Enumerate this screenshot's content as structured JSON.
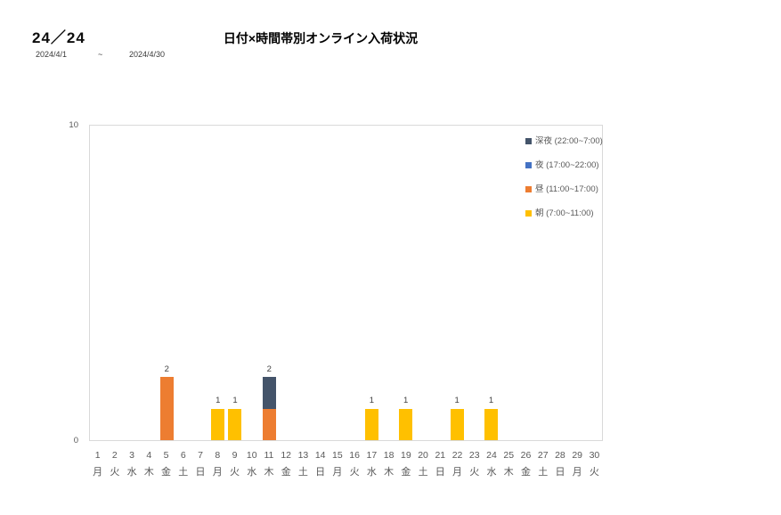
{
  "header": {
    "counter": "24／24",
    "date_from": "2024/4/1",
    "date_separator": "~",
    "date_to": "2024/4/30"
  },
  "chart_data": {
    "type": "bar",
    "stacked": true,
    "title": "日付×時間帯別オンライン入荷状況",
    "xlabel": "",
    "ylabel": "",
    "ylim": [
      0,
      10
    ],
    "y_ticks": [
      0,
      10
    ],
    "grid": false,
    "legend_position": "top-right",
    "categories": [
      1,
      2,
      3,
      4,
      5,
      6,
      7,
      8,
      9,
      10,
      11,
      12,
      13,
      14,
      15,
      16,
      17,
      18,
      19,
      20,
      21,
      22,
      23,
      24,
      25,
      26,
      27,
      28,
      29,
      30
    ],
    "category_weekdays": [
      "月",
      "火",
      "水",
      "木",
      "金",
      "土",
      "日",
      "月",
      "火",
      "水",
      "木",
      "金",
      "土",
      "日",
      "月",
      "火",
      "水",
      "木",
      "金",
      "土",
      "日",
      "月",
      "火",
      "水",
      "木",
      "金",
      "土",
      "日",
      "月",
      "火"
    ],
    "series": [
      {
        "name": "深夜 (22:00~7:00)",
        "color": "#44546A",
        "values": [
          0,
          0,
          0,
          0,
          0,
          0,
          0,
          0,
          0,
          0,
          1,
          0,
          0,
          0,
          0,
          0,
          0,
          0,
          0,
          0,
          0,
          0,
          0,
          0,
          0,
          0,
          0,
          0,
          0,
          0
        ]
      },
      {
        "name": "夜 (17:00~22:00)",
        "color": "#4472C4",
        "values": [
          0,
          0,
          0,
          0,
          0,
          0,
          0,
          0,
          0,
          0,
          0,
          0,
          0,
          0,
          0,
          0,
          0,
          0,
          0,
          0,
          0,
          0,
          0,
          0,
          0,
          0,
          0,
          0,
          0,
          0
        ]
      },
      {
        "name": "昼 (11:00~17:00)",
        "color": "#ED7D31",
        "values": [
          0,
          0,
          0,
          0,
          2,
          0,
          0,
          0,
          0,
          0,
          1,
          0,
          0,
          0,
          0,
          0,
          0,
          0,
          0,
          0,
          0,
          0,
          0,
          0,
          0,
          0,
          0,
          0,
          0,
          0
        ]
      },
      {
        "name": "朝 (7:00~11:00)",
        "color": "#FFC000",
        "values": [
          0,
          0,
          0,
          0,
          0,
          0,
          0,
          1,
          1,
          0,
          0,
          0,
          0,
          0,
          0,
          0,
          1,
          0,
          1,
          0,
          0,
          1,
          0,
          1,
          0,
          0,
          0,
          0,
          0,
          0
        ]
      }
    ],
    "bar_total_labels": [
      null,
      null,
      null,
      null,
      2,
      null,
      null,
      1,
      1,
      null,
      2,
      null,
      null,
      null,
      null,
      null,
      1,
      null,
      1,
      null,
      null,
      1,
      null,
      1,
      null,
      null,
      null,
      null,
      null,
      null
    ]
  },
  "style": {
    "axis_text_color": "#595959",
    "data_label_color": "#404040",
    "plot_border_color": "#D9D9D9"
  }
}
